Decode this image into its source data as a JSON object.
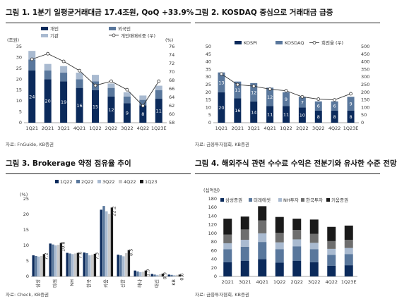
{
  "panels": [
    {
      "title": "그림 1. 1분기 일평균거래대금 17.4조원, QoQ +33.9%",
      "source": "자료: FnGuide, KB증권",
      "chart_data": {
        "type": "bar",
        "stacked": true,
        "categories": [
          "1Q21",
          "2Q21",
          "3Q21",
          "4Q21",
          "1Q22",
          "2Q22",
          "3Q22",
          "4Q22",
          "1Q23E"
        ],
        "series": [
          {
            "name": "개인",
            "color": "#0b2a5b",
            "values": [
              24,
              20,
              19,
              16,
              15,
              12,
              9,
              8,
              11
            ]
          },
          {
            "name": "외국인",
            "color": "#59779c",
            "values": [
              5,
              4,
              4,
              4,
              4,
              4,
              3,
              2.5,
              4
            ]
          },
          {
            "name": "기관",
            "color": "#a9bad0",
            "values": [
              4,
              3,
              3,
              3,
              3,
              2,
              2,
              2,
              2
            ]
          }
        ],
        "inner_labels": [
          24,
          20,
          19,
          16,
          15,
          12,
          9,
          8,
          11
        ],
        "line": {
          "name": "개인매매비중 (우)",
          "values": [
            73.0,
            74.3,
            72.5,
            70.3,
            66.8,
            67.8,
            65.8,
            62.0,
            67.8
          ]
        },
        "yleft": {
          "unit": "(조원)",
          "min": 0,
          "max": 35,
          "ticks": [
            0,
            5,
            10,
            15,
            20,
            25,
            30,
            35
          ]
        },
        "yright": {
          "unit": "(%)",
          "min": 58,
          "max": 76,
          "ticks": [
            58,
            60,
            62,
            64,
            66,
            68,
            70,
            72,
            74,
            76
          ]
        },
        "legend": "top"
      }
    },
    {
      "title": "그림 2. KOSDAQ 중심으로 거래대금 급증",
      "source": "자료: 금융투자협회, KB증권",
      "chart_data": {
        "type": "bar",
        "stacked": true,
        "categories": [
          "1Q21",
          "2Q21",
          "3Q21",
          "4Q21",
          "1Q22",
          "2Q22",
          "3Q22",
          "4Q22",
          "1Q23E"
        ],
        "series": [
          {
            "name": "KOSPI",
            "color": "#0b2a5b",
            "values": [
              20,
              16,
              14,
              11,
              11,
              10,
              8,
              8,
              8
            ]
          },
          {
            "name": "KOSDAQ",
            "color": "#59779c",
            "values": [
              13,
              11,
              12,
              12,
              9,
              7,
              6,
              6,
              9
            ]
          }
        ],
        "line": {
          "name": "회전율 (우)",
          "values": [
            320,
            250,
            240,
            220,
            210,
            170,
            155,
            150,
            190
          ]
        },
        "yleft": {
          "min": 0,
          "max": 50,
          "ticks": [
            0,
            5,
            10,
            15,
            20,
            25,
            30,
            35,
            40,
            45,
            50
          ]
        },
        "yright": {
          "min": 0,
          "max": 500,
          "ticks": [
            0,
            50,
            100,
            150,
            200,
            250,
            300,
            350,
            400,
            450,
            500
          ]
        },
        "legend": "top"
      }
    },
    {
      "title": "그림 3. Brokerage 약정 점유율 추이",
      "source": "자료: Check, KB증권",
      "chart_data": {
        "type": "bar",
        "categories": [
          "삼성",
          "미래",
          "NH",
          "한국",
          "키움",
          "신한",
          "하나",
          "대신",
          "KB"
        ],
        "series": [
          {
            "name": "1Q22",
            "color": "#0b2a5b",
            "values": [
              6.8,
              10.6,
              7.6,
              7.7,
              21.5,
              7.0,
              1.9,
              0.8,
              0.6
            ]
          },
          {
            "name": "2Q22",
            "color": "#59779c",
            "values": [
              6.6,
              10.3,
              7.4,
              7.5,
              22.7,
              6.8,
              1.6,
              0.6,
              0.5
            ]
          },
          {
            "name": "3Q22",
            "color": "#a9bad0",
            "values": [
              6.4,
              10.0,
              7.2,
              6.8,
              21.0,
              6.5,
              1.4,
              0.5,
              0.4
            ]
          },
          {
            "name": "4Q22",
            "color": "#c9c9c9",
            "values": [
              6.6,
              10.2,
              7.4,
              7.0,
              20.2,
              7.5,
              1.5,
              0.7,
              0.5
            ]
          },
          {
            "name": "1Q23",
            "color": "#1a1a1a",
            "values": [
              7.2,
              10.8,
              7.6,
              7.3,
              22.2,
              8.5,
              1.9,
              0.9,
              0.6
            ]
          }
        ],
        "value_labels": [
          7.2,
          10.8,
          7.6,
          7.3,
          22.2,
          8.5,
          1.9,
          0.9,
          0.6
        ],
        "ylabel": "(%)",
        "ylim": [
          0,
          25
        ],
        "yticks": [
          0,
          5,
          10,
          15,
          20,
          25
        ],
        "legend": "top"
      }
    },
    {
      "title": "그림 4. 해외주식 관련 수수료 수익은 전분기와 유사한 수준 전망",
      "source": "자료: 금융투자협회, KB증권",
      "chart_data": {
        "type": "bar",
        "stacked": true,
        "categories": [
          "2Q21",
          "3Q21",
          "4Q21",
          "1Q22",
          "2Q22",
          "3Q22",
          "4Q22",
          "1Q23E"
        ],
        "series": [
          {
            "name": "삼성증권",
            "color": "#0b2a5b",
            "values": [
              33,
              36,
              40,
              32,
              36,
              33,
              25,
              26
            ]
          },
          {
            "name": "미래에셋",
            "color": "#59779c",
            "values": [
              30,
              33,
              40,
              31,
              34,
              30,
              25,
              26
            ]
          },
          {
            "name": "NH투자",
            "color": "#a9bad0",
            "values": [
              14,
              16,
              20,
              16,
              16,
              15,
              14,
              14
            ]
          },
          {
            "name": "한국투자",
            "color": "#6e6e6e",
            "values": [
              20,
              24,
              30,
              22,
              22,
              21,
              18,
              19
            ]
          },
          {
            "name": "키움증권",
            "color": "#1a1a1a",
            "values": [
              37,
              30,
              33,
              37,
              26,
              33,
              33,
              33
            ]
          }
        ],
        "ylabel": "(십억원)",
        "ylim": [
          0,
          180
        ],
        "yticks": [
          0,
          20,
          40,
          60,
          80,
          100,
          120,
          140,
          160,
          180
        ],
        "legend": "top"
      }
    }
  ]
}
